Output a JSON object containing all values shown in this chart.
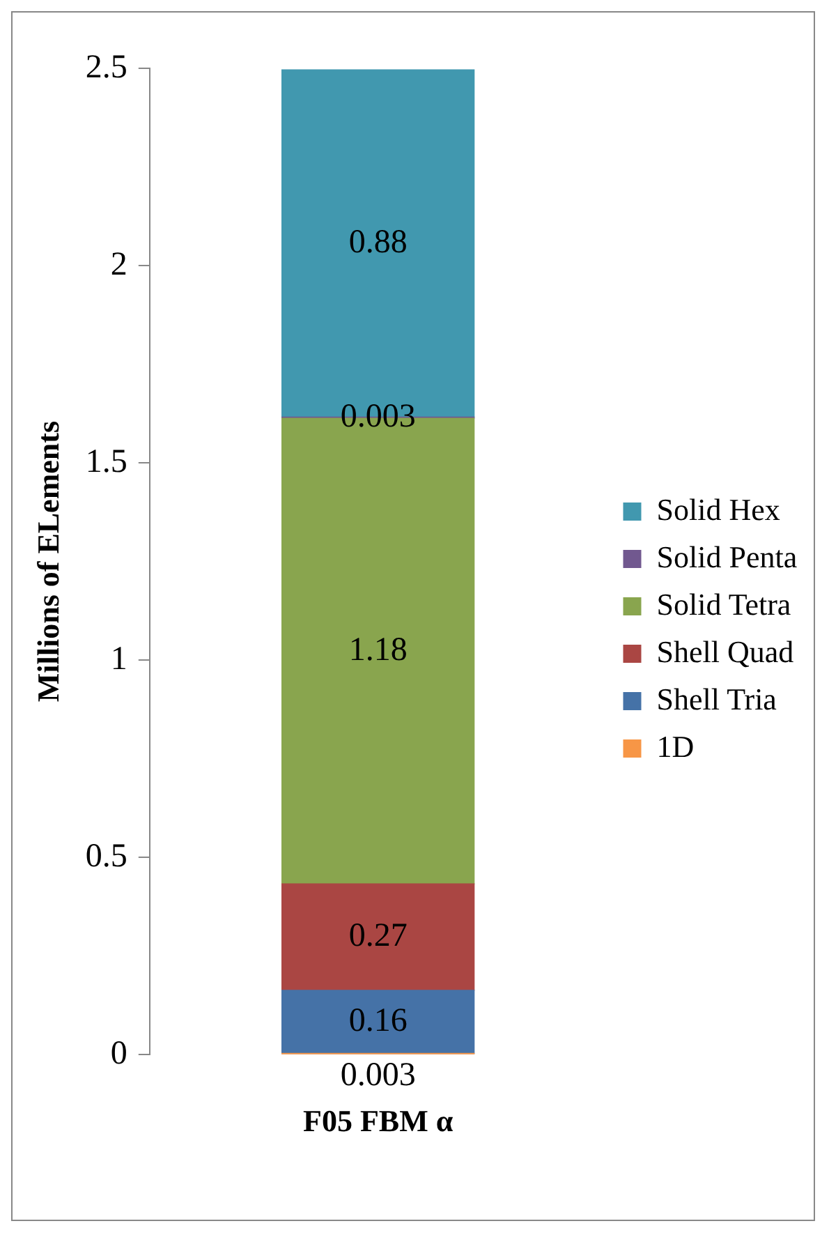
{
  "chart_data": {
    "type": "bar",
    "stacked": true,
    "categories": [
      "F05 FBM α"
    ],
    "ylabel": "Millions of ELements",
    "ylim": [
      0,
      2.5
    ],
    "yticks": [
      0,
      0.5,
      1,
      1.5,
      2,
      2.5
    ],
    "grid": false,
    "legend": "right",
    "data_labels": true,
    "series": [
      {
        "name": "1D",
        "color": "#f79646",
        "values": [
          0.003
        ]
      },
      {
        "name": "Shell Tria",
        "color": "#4572a7",
        "values": [
          0.16
        ]
      },
      {
        "name": "Shell Quad",
        "color": "#aa4643",
        "values": [
          0.27
        ]
      },
      {
        "name": "Solid Tetra",
        "color": "#89a54e",
        "values": [
          1.18
        ]
      },
      {
        "name": "Solid Penta",
        "color": "#71588f",
        "values": [
          0.003
        ]
      },
      {
        "name": "Solid Hex",
        "color": "#4198af",
        "values": [
          0.88
        ]
      }
    ]
  }
}
